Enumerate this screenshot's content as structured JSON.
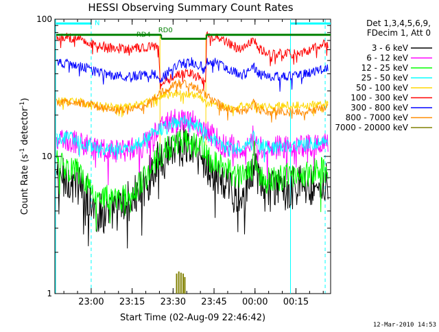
{
  "chart_data": {
    "type": "line",
    "title": "HESSI Observing Summary Count Rates",
    "xlabel": "Start Time (02-Aug-09 22:46:42)",
    "ylabel_main": "Count Rate (s",
    "ylabel_sup1": "-1",
    "ylabel_mid": " detector",
    "ylabel_sup2": "-1",
    "ylabel_end": ")",
    "y_scale": "log",
    "ylim": [
      1,
      100
    ],
    "y_ticks": [
      {
        "value": 1,
        "label": "1"
      },
      {
        "value": 10,
        "label": "10"
      },
      {
        "value": 100,
        "label": "100"
      }
    ],
    "xlim_minutes": [
      0,
      101
    ],
    "x_ticks": [
      {
        "minute": 13.3,
        "label": "23:00"
      },
      {
        "minute": 28.3,
        "label": "23:15"
      },
      {
        "minute": 43.3,
        "label": "23:30"
      },
      {
        "minute": 58.3,
        "label": "23:45"
      },
      {
        "minute": 73.3,
        "label": "00:00"
      },
      {
        "minute": 88.3,
        "label": "00:15"
      }
    ],
    "legend_header": [
      "Det 1,3,4,5,6,9,",
      "FDecim 1, Att 0"
    ],
    "legend_position": "right",
    "timestamp": "12-Mar-2010 14:53",
    "annotations": [
      {
        "label": "N",
        "x_minute": 15.5,
        "y": 95
      },
      {
        "label": "RD4",
        "x_minute": 32.5,
        "y": 78
      },
      {
        "label": "RD0",
        "x_minute": 40.5,
        "y": 84
      }
    ],
    "state_bars": [
      {
        "name": "N",
        "color": "#00ffff",
        "segments": [
          [
            0,
            13.3
          ],
          [
            86.3,
            101
          ]
        ],
        "y": 93
      },
      {
        "name": "RD0",
        "color": "#008000",
        "segments": [
          [
            0,
            39
          ],
          [
            55.5,
            101
          ]
        ],
        "y": 77
      },
      {
        "name": "RD4",
        "color": "#008000",
        "segments": [
          [
            39,
            55.5
          ]
        ],
        "y": 72
      }
    ],
    "saa_lines": [
      {
        "minute": 0,
        "style": "solid"
      },
      {
        "minute": 13.3,
        "style": "dashed"
      },
      {
        "minute": 86.3,
        "style": "solid"
      },
      {
        "minute": 99,
        "style": "dashed"
      }
    ],
    "attenuator_lines": [
      {
        "minute": 38.5
      },
      {
        "minute": 55.3
      }
    ],
    "series": [
      {
        "name": "3 - 6 keV",
        "color": "#000000",
        "knots": [
          [
            0,
            7.2
          ],
          [
            8,
            6.6
          ],
          [
            15,
            3.8
          ],
          [
            22,
            4.0
          ],
          [
            26,
            4.5
          ],
          [
            30,
            5.2
          ],
          [
            34,
            6.6
          ],
          [
            37,
            8.8
          ],
          [
            40,
            10.6
          ],
          [
            44,
            12.0
          ],
          [
            48,
            12.0
          ],
          [
            52,
            10.6
          ],
          [
            55,
            9.0
          ],
          [
            58,
            7.6
          ],
          [
            62,
            6.2
          ],
          [
            66,
            5.4
          ],
          [
            70,
            6.0
          ],
          [
            72,
            6.6
          ],
          [
            73,
            10.0
          ],
          [
            74,
            6.8
          ],
          [
            76,
            5.6
          ],
          [
            80,
            5.6
          ],
          [
            84,
            5.8
          ],
          [
            90,
            6.2
          ],
          [
            95,
            6.2
          ],
          [
            100,
            6.4
          ]
        ],
        "noise": 0.16
      },
      {
        "name": "6 - 12 keV",
        "color": "#ff00ff",
        "knots": [
          [
            0,
            13.0
          ],
          [
            10,
            12.5
          ],
          [
            16,
            11.0
          ],
          [
            22,
            11.0
          ],
          [
            28,
            11.2
          ],
          [
            32,
            12.0
          ],
          [
            36,
            14.0
          ],
          [
            40,
            16.8
          ],
          [
            44,
            18.5
          ],
          [
            48,
            18.5
          ],
          [
            52,
            17.2
          ],
          [
            55,
            15.2
          ],
          [
            58,
            13.8
          ],
          [
            62,
            12.0
          ],
          [
            66,
            11.8
          ],
          [
            70,
            12.0
          ],
          [
            73,
            14.0
          ],
          [
            75,
            12.0
          ],
          [
            80,
            11.6
          ],
          [
            88,
            12.0
          ],
          [
            95,
            12.2
          ],
          [
            100,
            12.6
          ]
        ],
        "noise": 0.09
      },
      {
        "name": "12 - 25 keV",
        "color": "#00ff00",
        "knots": [
          [
            0,
            9.0
          ],
          [
            8,
            8.0
          ],
          [
            14,
            5.8
          ],
          [
            20,
            4.8
          ],
          [
            26,
            5.0
          ],
          [
            30,
            5.8
          ],
          [
            34,
            7.8
          ],
          [
            38,
            10.0
          ],
          [
            42,
            11.6
          ],
          [
            46,
            12.8
          ],
          [
            50,
            13.0
          ],
          [
            53,
            11.8
          ],
          [
            56,
            10.0
          ],
          [
            59,
            8.8
          ],
          [
            62,
            8.0
          ],
          [
            66,
            7.2
          ],
          [
            70,
            7.4
          ],
          [
            72,
            7.8
          ],
          [
            73,
            10.5
          ],
          [
            74,
            7.8
          ],
          [
            76,
            6.6
          ],
          [
            82,
            7.0
          ],
          [
            88,
            7.4
          ],
          [
            94,
            7.6
          ],
          [
            100,
            8.2
          ]
        ],
        "noise": 0.1
      },
      {
        "name": "25 - 50 keV",
        "color": "#00ffff",
        "knots": [
          [
            0,
            14.0
          ],
          [
            8,
            13.2
          ],
          [
            14,
            11.6
          ],
          [
            20,
            11.2
          ],
          [
            26,
            11.4
          ],
          [
            30,
            12.0
          ],
          [
            34,
            13.8
          ],
          [
            38,
            15.6
          ],
          [
            42,
            17.0
          ],
          [
            46,
            17.8
          ],
          [
            50,
            17.8
          ],
          [
            53,
            16.4
          ],
          [
            56,
            14.4
          ],
          [
            59,
            13.0
          ],
          [
            62,
            11.8
          ],
          [
            66,
            11.4
          ],
          [
            70,
            11.8
          ],
          [
            73,
            13.8
          ],
          [
            75,
            12.0
          ],
          [
            80,
            11.6
          ],
          [
            88,
            12.0
          ],
          [
            95,
            12.4
          ],
          [
            100,
            13.0
          ]
        ],
        "noise": 0.05
      },
      {
        "name": "50 - 100 keV",
        "color": "#ffd700",
        "knots": [
          [
            0,
            25.5
          ],
          [
            10,
            24.8
          ],
          [
            16,
            23.4
          ],
          [
            22,
            23.0
          ],
          [
            28,
            23.0
          ],
          [
            32,
            24.0
          ],
          [
            35,
            26.0
          ],
          [
            38,
            27.5
          ],
          [
            44,
            28.5
          ],
          [
            50,
            28.5
          ],
          [
            53,
            27.0
          ],
          [
            56,
            25.0
          ],
          [
            60,
            23.6
          ],
          [
            64,
            22.4
          ],
          [
            68,
            23.0
          ],
          [
            72,
            24.6
          ],
          [
            74,
            22.6
          ],
          [
            78,
            23.0
          ],
          [
            86,
            23.4
          ],
          [
            94,
            23.8
          ],
          [
            100,
            24.2
          ]
        ],
        "noise": 0.03
      },
      {
        "name": "100 - 300 keV",
        "color": "#ff0000",
        "knots": [
          [
            0,
            75.0
          ],
          [
            8,
            73.0
          ],
          [
            14,
            67.0
          ],
          [
            20,
            62.0
          ],
          [
            26,
            61.0
          ],
          [
            32,
            62.0
          ],
          [
            38,
            64.0
          ],
          [
            38.6,
            33.0
          ],
          [
            42,
            37.0
          ],
          [
            46,
            40.0
          ],
          [
            50,
            40.0
          ],
          [
            53,
            37.0
          ],
          [
            55.3,
            34.0
          ],
          [
            55.6,
            75.0
          ],
          [
            60,
            74.0
          ],
          [
            64,
            66.0
          ],
          [
            68,
            60.0
          ],
          [
            70,
            62.0
          ],
          [
            72.5,
            72.0
          ],
          [
            74.5,
            61.0
          ],
          [
            80,
            56.0
          ],
          [
            86,
            56.0
          ],
          [
            92,
            58.0
          ],
          [
            96,
            64.0
          ],
          [
            100,
            66.0
          ]
        ],
        "noise": 0.035
      },
      {
        "name": "300 - 800 keV",
        "color": "#0000ff",
        "knots": [
          [
            0,
            48.0
          ],
          [
            8,
            47.0
          ],
          [
            14,
            42.0
          ],
          [
            20,
            39.0
          ],
          [
            26,
            38.0
          ],
          [
            32,
            39.0
          ],
          [
            38,
            40.0
          ],
          [
            38.6,
            36.0
          ],
          [
            42,
            42.0
          ],
          [
            46,
            47.0
          ],
          [
            50,
            49.0
          ],
          [
            53,
            46.0
          ],
          [
            55.3,
            43.0
          ],
          [
            55.6,
            49.0
          ],
          [
            60,
            48.0
          ],
          [
            64,
            43.0
          ],
          [
            68,
            39.5
          ],
          [
            70,
            40.0
          ],
          [
            72.5,
            46.0
          ],
          [
            74.5,
            40.0
          ],
          [
            80,
            38.0
          ],
          [
            86,
            38.5
          ],
          [
            92,
            40.0
          ],
          [
            96,
            42.0
          ],
          [
            100,
            44.0
          ]
        ],
        "noise": 0.035
      },
      {
        "name": "800 - 7000 keV",
        "color": "#ff8c00",
        "knots": [
          [
            0,
            25.0
          ],
          [
            10,
            24.5
          ],
          [
            16,
            23.0
          ],
          [
            22,
            22.0
          ],
          [
            28,
            22.0
          ],
          [
            32,
            23.0
          ],
          [
            36,
            26.0
          ],
          [
            40,
            30.0
          ],
          [
            44,
            34.0
          ],
          [
            48,
            34.0
          ],
          [
            52,
            31.5
          ],
          [
            55,
            28.5
          ],
          [
            58,
            25.5
          ],
          [
            62,
            23.0
          ],
          [
            66,
            21.5
          ],
          [
            70,
            21.5
          ],
          [
            72,
            23.0
          ],
          [
            73,
            25.5
          ],
          [
            74,
            22.0
          ],
          [
            78,
            21.0
          ],
          [
            86,
            21.2
          ],
          [
            94,
            21.6
          ],
          [
            100,
            22.5
          ]
        ],
        "noise": 0.03
      },
      {
        "name": "7000 - 20000 keV",
        "color": "#808000",
        "knots": [],
        "noise": 0,
        "spikes": [
          [
            44.6,
            1.4
          ],
          [
            45.4,
            1.45
          ],
          [
            46.2,
            1.42
          ],
          [
            47.0,
            1.4
          ],
          [
            47.6,
            1.32
          ]
        ]
      }
    ]
  }
}
